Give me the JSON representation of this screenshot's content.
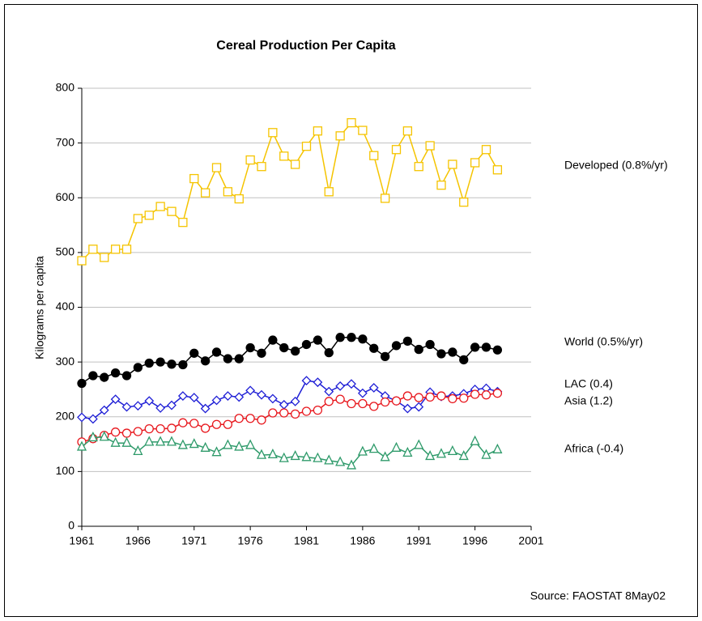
{
  "chart_data": {
    "type": "line",
    "title": "Cereal Production Per Capita",
    "y_label": "Kilograms per capita",
    "source": "Source: FAOSTAT 8May02",
    "x": [
      1961,
      1962,
      1963,
      1964,
      1965,
      1966,
      1967,
      1968,
      1969,
      1970,
      1971,
      1972,
      1973,
      1974,
      1975,
      1976,
      1977,
      1978,
      1979,
      1980,
      1981,
      1982,
      1983,
      1984,
      1985,
      1986,
      1987,
      1988,
      1989,
      1990,
      1991,
      1992,
      1993,
      1994,
      1995,
      1996,
      1997,
      1998
    ],
    "xlim": [
      1961,
      2001
    ],
    "xticks": [
      1961,
      1966,
      1971,
      1976,
      1981,
      1986,
      1991,
      1996,
      2001
    ],
    "ylim": [
      0,
      800
    ],
    "yticks": [
      0,
      100,
      200,
      300,
      400,
      500,
      600,
      700,
      800
    ],
    "grid": true,
    "series": [
      {
        "name": "Developed (0.8%/yr)",
        "color": "#f5c400",
        "marker": "square",
        "values": [
          485,
          506,
          491,
          506,
          506,
          562,
          568,
          584,
          575,
          555,
          635,
          609,
          655,
          611,
          598,
          669,
          657,
          719,
          676,
          661,
          694,
          722,
          611,
          713,
          737,
          723,
          677,
          599,
          688,
          722,
          657,
          695,
          623,
          661,
          592,
          664,
          688,
          651
        ]
      },
      {
        "name": "World (0.5%/yr)",
        "color": "#000000",
        "marker": "filled-circle",
        "values": [
          261,
          275,
          272,
          280,
          275,
          290,
          298,
          300,
          296,
          295,
          316,
          302,
          318,
          306,
          306,
          326,
          316,
          340,
          326,
          320,
          332,
          340,
          317,
          345,
          345,
          342,
          325,
          310,
          330,
          338,
          323,
          332,
          315,
          318,
          304,
          327,
          327,
          322
        ]
      },
      {
        "name": "LAC (0.4)",
        "color": "#1f1fd6",
        "marker": "diamond",
        "values": [
          199,
          196,
          212,
          232,
          218,
          220,
          229,
          216,
          221,
          238,
          235,
          215,
          230,
          238,
          236,
          248,
          240,
          233,
          222,
          228,
          266,
          263,
          246,
          256,
          260,
          243,
          253,
          238,
          229,
          215,
          218,
          245,
          237,
          238,
          242,
          250,
          252,
          246
        ]
      },
      {
        "name": "Asia (1.2)",
        "color": "#e8181e",
        "marker": "circle",
        "values": [
          154,
          160,
          166,
          172,
          170,
          173,
          178,
          178,
          179,
          189,
          188,
          179,
          186,
          186,
          197,
          197,
          194,
          207,
          207,
          205,
          210,
          212,
          228,
          232,
          224,
          224,
          219,
          227,
          229,
          238,
          235,
          236,
          238,
          233,
          234,
          241,
          240,
          243
        ]
      },
      {
        "name": "Africa (-0.4)",
        "color": "#2e9a6a",
        "marker": "triangle",
        "values": [
          145,
          162,
          163,
          152,
          152,
          137,
          154,
          154,
          154,
          148,
          150,
          143,
          135,
          148,
          145,
          148,
          130,
          131,
          124,
          128,
          126,
          124,
          120,
          117,
          111,
          136,
          141,
          126,
          143,
          134,
          148,
          128,
          132,
          137,
          128,
          155,
          130,
          140
        ]
      }
    ]
  }
}
